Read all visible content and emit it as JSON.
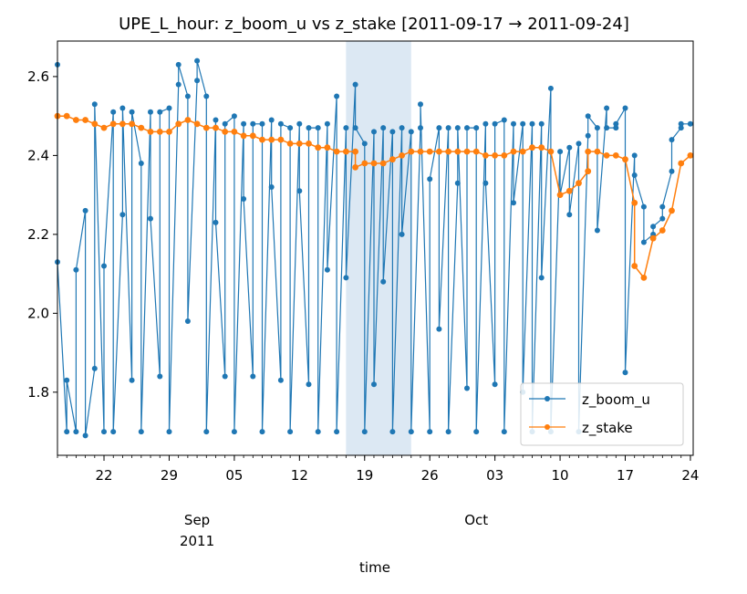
{
  "chart_data": {
    "type": "line",
    "title": "UPE_L_hour: z_boom_u vs z_stake  [2011-09-17 → 2011-09-24]",
    "xlabel": "time",
    "ylabel": "",
    "x_range": [
      "2011-08-17",
      "2011-10-24"
    ],
    "ylim": [
      1.64,
      2.69
    ],
    "y_ticks": [
      1.8,
      2.0,
      2.2,
      2.4,
      2.6
    ],
    "x_ticks": [
      {
        "date": "2011-08-22",
        "label": "22"
      },
      {
        "date": "2011-08-29",
        "label": "29"
      },
      {
        "date": "2011-09-05",
        "label": "05"
      },
      {
        "date": "2011-09-12",
        "label": "12"
      },
      {
        "date": "2011-09-19",
        "label": "19"
      },
      {
        "date": "2011-09-26",
        "label": "26"
      },
      {
        "date": "2011-10-03",
        "label": "03"
      },
      {
        "date": "2011-10-10",
        "label": "10"
      },
      {
        "date": "2011-10-17",
        "label": "17"
      },
      {
        "date": "2011-10-24",
        "label": "24"
      }
    ],
    "month_labels": [
      {
        "date": "2011-09-01",
        "label": "Sep",
        "sublabel": "2011"
      },
      {
        "date": "2011-10-01",
        "label": "Oct",
        "sublabel": ""
      }
    ],
    "highlight_span": [
      "2011-09-17",
      "2011-09-24"
    ],
    "grid": false,
    "legend_position": "lower right",
    "series": [
      {
        "name": "z_boom_u",
        "color": "#1f77b4",
        "marker": "circle",
        "points": [
          [
            "2011-08-17",
            2.63
          ],
          [
            "2011-08-17",
            2.13
          ],
          [
            "2011-08-18",
            1.7
          ],
          [
            "2011-08-18",
            1.83
          ],
          [
            "2011-08-19",
            1.7
          ],
          [
            "2011-08-19",
            2.11
          ],
          [
            "2011-08-20",
            2.26
          ],
          [
            "2011-08-20",
            1.69
          ],
          [
            "2011-08-21",
            1.86
          ],
          [
            "2011-08-21",
            2.53
          ],
          [
            "2011-08-22",
            1.7
          ],
          [
            "2011-08-22",
            2.12
          ],
          [
            "2011-08-23",
            2.51
          ],
          [
            "2011-08-23",
            1.7
          ],
          [
            "2011-08-24",
            2.25
          ],
          [
            "2011-08-24",
            2.52
          ],
          [
            "2011-08-25",
            1.83
          ],
          [
            "2011-08-25",
            2.51
          ],
          [
            "2011-08-26",
            2.38
          ],
          [
            "2011-08-26",
            1.7
          ],
          [
            "2011-08-27",
            2.51
          ],
          [
            "2011-08-27",
            2.24
          ],
          [
            "2011-08-28",
            1.84
          ],
          [
            "2011-08-28",
            2.51
          ],
          [
            "2011-08-29",
            2.52
          ],
          [
            "2011-08-29",
            1.7
          ],
          [
            "2011-08-30",
            2.58
          ],
          [
            "2011-08-30",
            2.63
          ],
          [
            "2011-08-31",
            2.55
          ],
          [
            "2011-08-31",
            1.98
          ],
          [
            "2011-09-01",
            2.59
          ],
          [
            "2011-09-01",
            2.64
          ],
          [
            "2011-09-02",
            2.55
          ],
          [
            "2011-09-02",
            1.7
          ],
          [
            "2011-09-03",
            2.49
          ],
          [
            "2011-09-03",
            2.23
          ],
          [
            "2011-09-04",
            1.84
          ],
          [
            "2011-09-04",
            2.48
          ],
          [
            "2011-09-05",
            2.5
          ],
          [
            "2011-09-05",
            1.7
          ],
          [
            "2011-09-06",
            2.48
          ],
          [
            "2011-09-06",
            2.29
          ],
          [
            "2011-09-07",
            1.84
          ],
          [
            "2011-09-07",
            2.48
          ],
          [
            "2011-09-08",
            2.48
          ],
          [
            "2011-09-08",
            1.7
          ],
          [
            "2011-09-09",
            2.49
          ],
          [
            "2011-09-09",
            2.32
          ],
          [
            "2011-09-10",
            1.83
          ],
          [
            "2011-09-10",
            2.48
          ],
          [
            "2011-09-11",
            2.47
          ],
          [
            "2011-09-11",
            1.7
          ],
          [
            "2011-09-12",
            2.48
          ],
          [
            "2011-09-12",
            2.31
          ],
          [
            "2011-09-13",
            1.82
          ],
          [
            "2011-09-13",
            2.47
          ],
          [
            "2011-09-14",
            2.47
          ],
          [
            "2011-09-14",
            1.7
          ],
          [
            "2011-09-15",
            2.48
          ],
          [
            "2011-09-15",
            2.11
          ],
          [
            "2011-09-16",
            2.55
          ],
          [
            "2011-09-16",
            1.7
          ],
          [
            "2011-09-17",
            2.47
          ],
          [
            "2011-09-17",
            2.09
          ],
          [
            "2011-09-18",
            2.58
          ],
          [
            "2011-09-18",
            2.47
          ],
          [
            "2011-09-19",
            2.43
          ],
          [
            "2011-09-19",
            1.7
          ],
          [
            "2011-09-20",
            2.46
          ],
          [
            "2011-09-20",
            1.82
          ],
          [
            "2011-09-21",
            2.47
          ],
          [
            "2011-09-21",
            2.08
          ],
          [
            "2011-09-22",
            2.46
          ],
          [
            "2011-09-22",
            1.7
          ],
          [
            "2011-09-23",
            2.47
          ],
          [
            "2011-09-23",
            2.2
          ],
          [
            "2011-09-24",
            2.46
          ],
          [
            "2011-09-24",
            1.7
          ],
          [
            "2011-09-25",
            2.47
          ],
          [
            "2011-09-25",
            2.53
          ],
          [
            "2011-09-26",
            1.7
          ],
          [
            "2011-09-26",
            2.34
          ],
          [
            "2011-09-27",
            2.47
          ],
          [
            "2011-09-27",
            1.96
          ],
          [
            "2011-09-28",
            2.47
          ],
          [
            "2011-09-28",
            1.7
          ],
          [
            "2011-09-29",
            2.33
          ],
          [
            "2011-09-29",
            2.47
          ],
          [
            "2011-09-30",
            1.81
          ],
          [
            "2011-09-30",
            2.47
          ],
          [
            "2011-10-01",
            2.47
          ],
          [
            "2011-10-01",
            1.7
          ],
          [
            "2011-10-02",
            2.48
          ],
          [
            "2011-10-02",
            2.33
          ],
          [
            "2011-10-03",
            1.82
          ],
          [
            "2011-10-03",
            2.48
          ],
          [
            "2011-10-04",
            2.49
          ],
          [
            "2011-10-04",
            1.7
          ],
          [
            "2011-10-05",
            2.48
          ],
          [
            "2011-10-05",
            2.28
          ],
          [
            "2011-10-06",
            2.48
          ],
          [
            "2011-10-06",
            1.8
          ],
          [
            "2011-10-07",
            2.48
          ],
          [
            "2011-10-07",
            1.7
          ],
          [
            "2011-10-08",
            2.48
          ],
          [
            "2011-10-08",
            2.09
          ],
          [
            "2011-10-09",
            2.57
          ],
          [
            "2011-10-09",
            1.7
          ],
          [
            "2011-10-10",
            2.41
          ],
          [
            "2011-10-10",
            2.3
          ],
          [
            "2011-10-11",
            2.42
          ],
          [
            "2011-10-11",
            2.25
          ],
          [
            "2011-10-12",
            2.43
          ],
          [
            "2011-10-12",
            1.7
          ],
          [
            "2011-10-13",
            2.45
          ],
          [
            "2011-10-13",
            2.5
          ],
          [
            "2011-10-14",
            2.47
          ],
          [
            "2011-10-14",
            2.21
          ],
          [
            "2011-10-15",
            2.52
          ],
          [
            "2011-10-15",
            2.47
          ],
          [
            "2011-10-16",
            2.47
          ],
          [
            "2011-10-16",
            2.48
          ],
          [
            "2011-10-17",
            2.52
          ],
          [
            "2011-10-17",
            1.85
          ],
          [
            "2011-10-18",
            2.4
          ],
          [
            "2011-10-18",
            2.35
          ],
          [
            "2011-10-19",
            2.27
          ],
          [
            "2011-10-19",
            2.18
          ],
          [
            "2011-10-20",
            2.2
          ],
          [
            "2011-10-20",
            2.22
          ],
          [
            "2011-10-21",
            2.24
          ],
          [
            "2011-10-21",
            2.27
          ],
          [
            "2011-10-22",
            2.36
          ],
          [
            "2011-10-22",
            2.44
          ],
          [
            "2011-10-23",
            2.47
          ],
          [
            "2011-10-23",
            2.48
          ],
          [
            "2011-10-24",
            2.48
          ]
        ]
      },
      {
        "name": "z_stake",
        "color": "#ff7f0e",
        "marker": "circle",
        "points": [
          [
            "2011-08-17",
            2.5
          ],
          [
            "2011-08-18",
            2.5
          ],
          [
            "2011-08-19",
            2.49
          ],
          [
            "2011-08-20",
            2.49
          ],
          [
            "2011-08-21",
            2.48
          ],
          [
            "2011-08-22",
            2.47
          ],
          [
            "2011-08-23",
            2.48
          ],
          [
            "2011-08-24",
            2.48
          ],
          [
            "2011-08-25",
            2.48
          ],
          [
            "2011-08-26",
            2.47
          ],
          [
            "2011-08-27",
            2.46
          ],
          [
            "2011-08-28",
            2.46
          ],
          [
            "2011-08-29",
            2.46
          ],
          [
            "2011-08-30",
            2.48
          ],
          [
            "2011-08-31",
            2.49
          ],
          [
            "2011-09-01",
            2.48
          ],
          [
            "2011-09-02",
            2.47
          ],
          [
            "2011-09-03",
            2.47
          ],
          [
            "2011-09-04",
            2.46
          ],
          [
            "2011-09-05",
            2.46
          ],
          [
            "2011-09-06",
            2.45
          ],
          [
            "2011-09-07",
            2.45
          ],
          [
            "2011-09-08",
            2.44
          ],
          [
            "2011-09-09",
            2.44
          ],
          [
            "2011-09-10",
            2.44
          ],
          [
            "2011-09-11",
            2.43
          ],
          [
            "2011-09-12",
            2.43
          ],
          [
            "2011-09-13",
            2.43
          ],
          [
            "2011-09-14",
            2.42
          ],
          [
            "2011-09-15",
            2.42
          ],
          [
            "2011-09-16",
            2.41
          ],
          [
            "2011-09-17",
            2.41
          ],
          [
            "2011-09-18",
            2.41
          ],
          [
            "2011-09-18",
            2.37
          ],
          [
            "2011-09-19",
            2.38
          ],
          [
            "2011-09-20",
            2.38
          ],
          [
            "2011-09-21",
            2.38
          ],
          [
            "2011-09-22",
            2.39
          ],
          [
            "2011-09-23",
            2.4
          ],
          [
            "2011-09-24",
            2.41
          ],
          [
            "2011-09-25",
            2.41
          ],
          [
            "2011-09-26",
            2.41
          ],
          [
            "2011-09-27",
            2.41
          ],
          [
            "2011-09-28",
            2.41
          ],
          [
            "2011-09-29",
            2.41
          ],
          [
            "2011-09-30",
            2.41
          ],
          [
            "2011-10-01",
            2.41
          ],
          [
            "2011-10-02",
            2.4
          ],
          [
            "2011-10-03",
            2.4
          ],
          [
            "2011-10-04",
            2.4
          ],
          [
            "2011-10-05",
            2.41
          ],
          [
            "2011-10-06",
            2.41
          ],
          [
            "2011-10-07",
            2.42
          ],
          [
            "2011-10-08",
            2.42
          ],
          [
            "2011-10-09",
            2.41
          ],
          [
            "2011-10-10",
            2.3
          ],
          [
            "2011-10-11",
            2.31
          ],
          [
            "2011-10-12",
            2.33
          ],
          [
            "2011-10-13",
            2.36
          ],
          [
            "2011-10-13",
            2.41
          ],
          [
            "2011-10-14",
            2.41
          ],
          [
            "2011-10-15",
            2.4
          ],
          [
            "2011-10-16",
            2.4
          ],
          [
            "2011-10-17",
            2.39
          ],
          [
            "2011-10-18",
            2.28
          ],
          [
            "2011-10-18",
            2.12
          ],
          [
            "2011-10-19",
            2.09
          ],
          [
            "2011-10-20",
            2.19
          ],
          [
            "2011-10-21",
            2.21
          ],
          [
            "2011-10-22",
            2.26
          ],
          [
            "2011-10-23",
            2.38
          ],
          [
            "2011-10-24",
            2.4
          ]
        ]
      }
    ]
  }
}
